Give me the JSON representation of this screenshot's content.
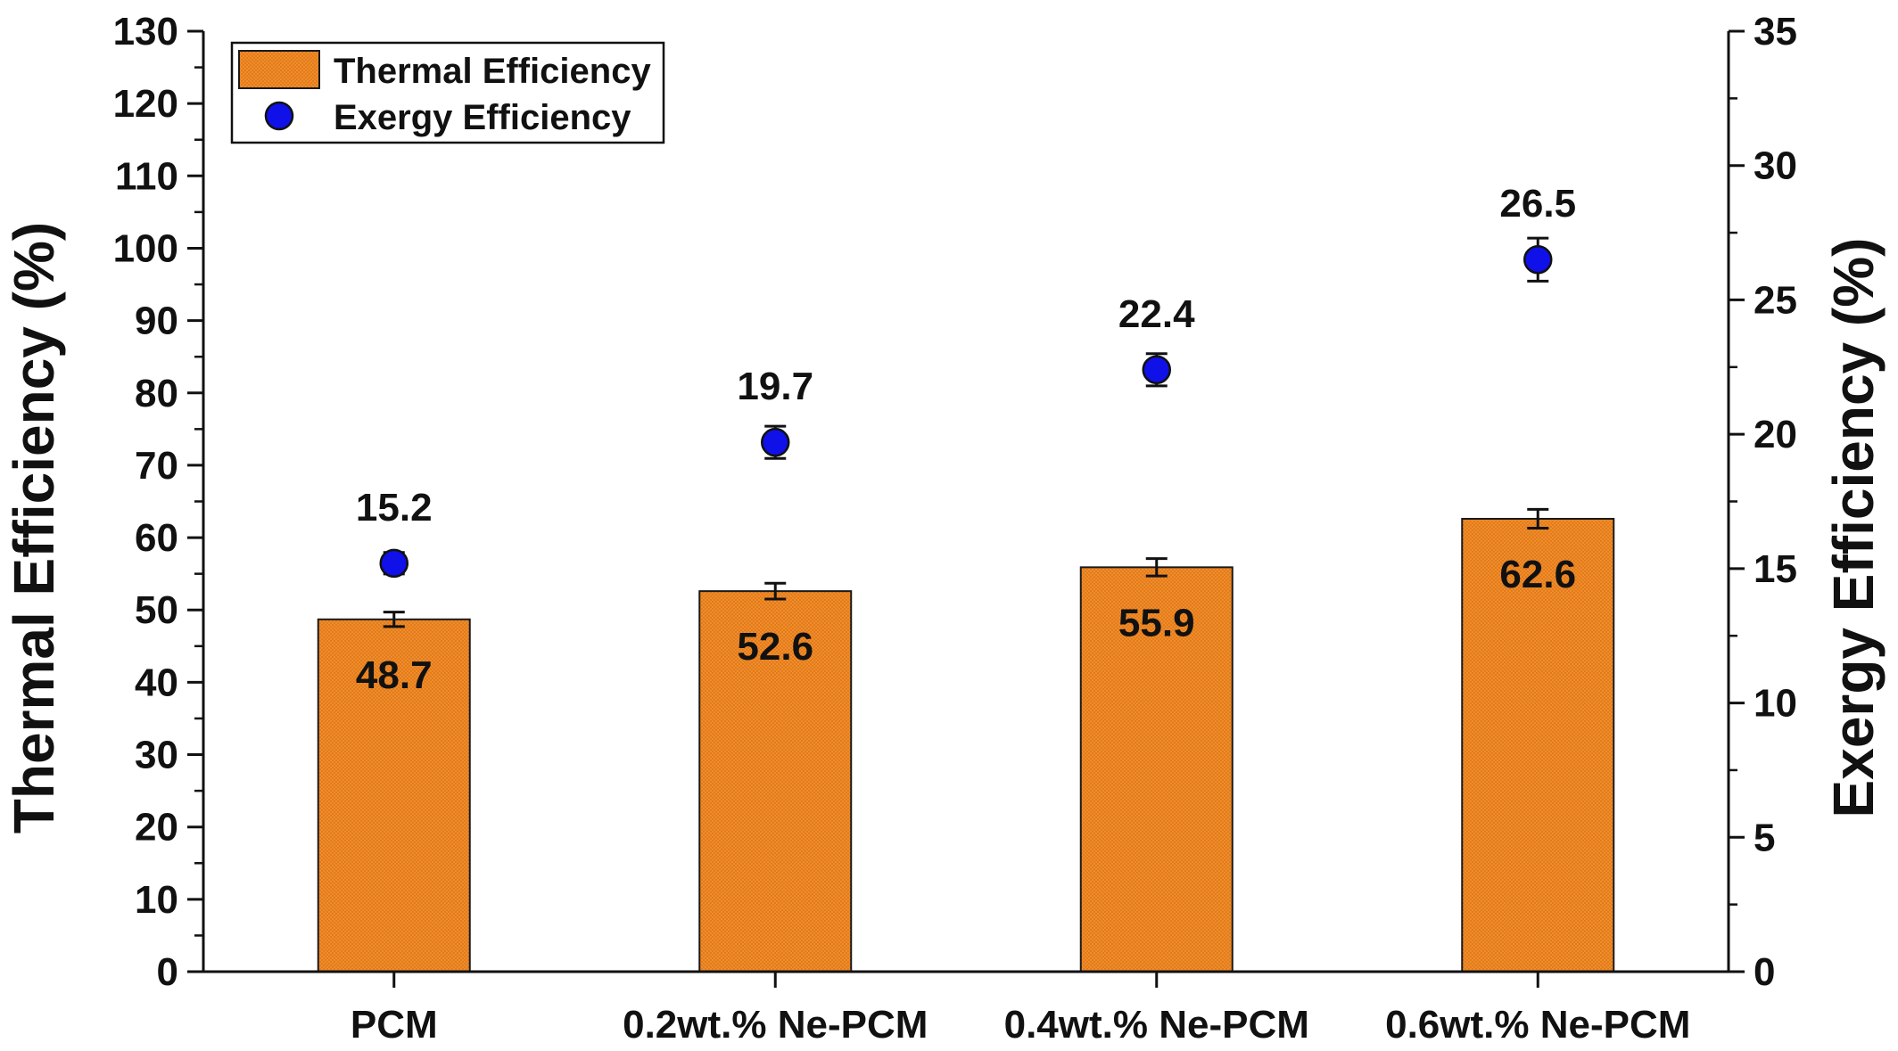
{
  "chart_data": {
    "type": "bar",
    "categories": [
      "PCM",
      "0.2wt.% Ne-PCM",
      "0.4wt.% Ne-PCM",
      "0.6wt.% Ne-PCM"
    ],
    "series": [
      {
        "name": "Thermal Efficiency",
        "type": "bar",
        "axis": "left",
        "values": [
          48.7,
          52.6,
          55.9,
          62.6
        ],
        "errors": [
          1.0,
          1.1,
          1.2,
          1.3
        ],
        "labels": [
          "48.7",
          "52.6",
          "55.9",
          "62.6"
        ]
      },
      {
        "name": "Exergy Efficiency",
        "type": "scatter",
        "axis": "right",
        "values": [
          15.2,
          19.7,
          22.4,
          26.5
        ],
        "errors": [
          0.4,
          0.6,
          0.6,
          0.8
        ],
        "labels": [
          "15.2",
          "19.7",
          "22.4",
          "26.5"
        ]
      }
    ],
    "ylabel": "Thermal Efficiency (%)",
    "y2label": "Exergy Efficiency (%)",
    "ylim": [
      0,
      130
    ],
    "y2lim": [
      0,
      35
    ],
    "yticks": [
      "0",
      "10",
      "20",
      "30",
      "40",
      "50",
      "60",
      "70",
      "80",
      "90",
      "100",
      "110",
      "120",
      "130"
    ],
    "y2ticks": [
      "0",
      "5",
      "10",
      "15",
      "20",
      "25",
      "30",
      "35"
    ],
    "grid": false,
    "legend_position": "top-left",
    "colors": {
      "bar_fill": "#F28C28",
      "bar_stroke": "#1a1a1a",
      "marker_fill": "#1010E8",
      "marker_stroke": "#111111",
      "axis": "#111111"
    }
  }
}
